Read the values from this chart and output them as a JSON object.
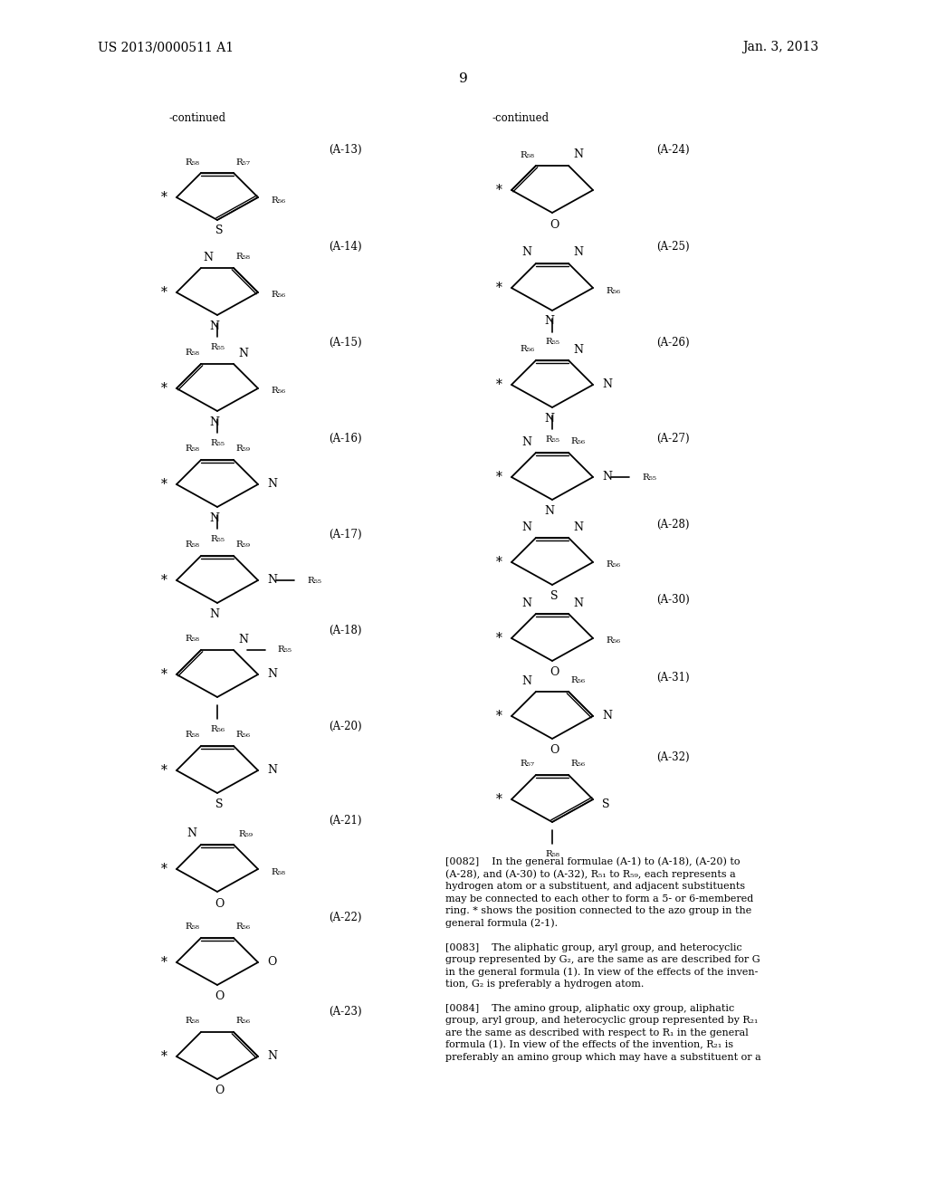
{
  "page_header_left": "US 2013/0000511 A1",
  "page_header_right": "Jan. 3, 2013",
  "page_number": "9",
  "bg_color": "#ffffff"
}
